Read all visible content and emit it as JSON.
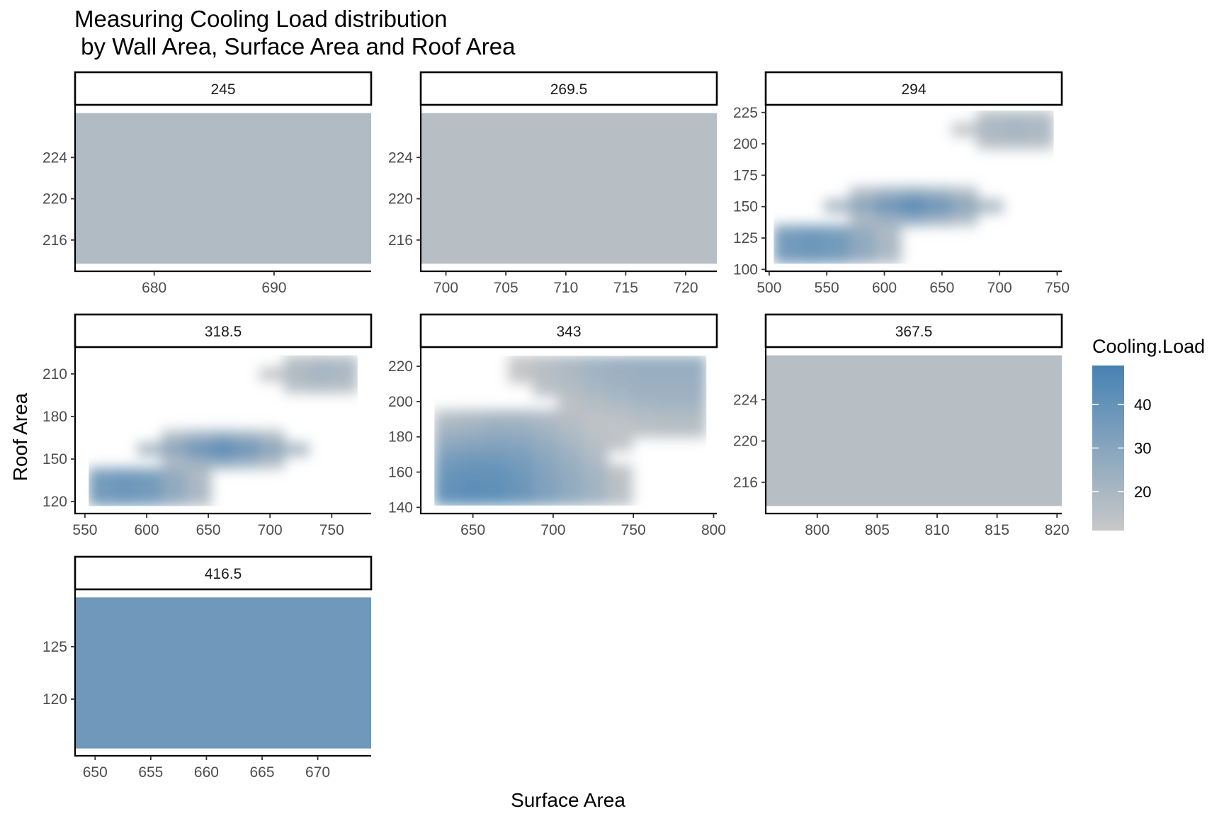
{
  "chart_data": {
    "type": "heatmap",
    "title": "Measuring Cooling Load distribution\n by Wall Area, Surface Area and Roof Area",
    "xlabel": "Surface Area",
    "ylabel": "Roof Area",
    "facet_var": "Wall Area",
    "legend": {
      "title": "Cooling.Load",
      "placement": "right",
      "range": [
        11,
        49
      ],
      "breaks": [
        20,
        30,
        40
      ],
      "low_color": "#c8c8c8",
      "high_color": "#4682b4"
    },
    "panels": [
      {
        "label": "245",
        "xlim": [
          673.4,
          698.1
        ],
        "ylim": [
          212.97,
          229.03
        ],
        "xticks": [
          680,
          690
        ],
        "yticks": [
          216,
          220,
          224
        ],
        "grid_x": [
          673.4,
          698.1
        ],
        "grid_y": [
          213.7,
          228.3
        ],
        "grid": [
          [
            18
          ]
        ]
      },
      {
        "label": "269.5",
        "xlim": [
          697.9,
          722.6
        ],
        "ylim": [
          212.97,
          229.03
        ],
        "xticks": [
          700,
          705,
          710,
          715,
          720
        ],
        "yticks": [
          216,
          220,
          224
        ],
        "grid_x": [
          697.9,
          722.6
        ],
        "grid_y": [
          213.7,
          228.3
        ],
        "grid": [
          [
            16
          ]
        ]
      },
      {
        "label": "294",
        "xlim": [
          497,
          754
        ],
        "ylim": [
          98.5,
          230.5
        ],
        "xticks": [
          500,
          550,
          600,
          650,
          700,
          750
        ],
        "yticks": [
          100,
          125,
          150,
          175,
          200,
          225
        ],
        "grid_x": [
          504,
          747
        ],
        "grid_y": [
          104.5,
          226.5
        ],
        "grid": [
          [
            null,
            null,
            null,
            null,
            null,
            null,
            null,
            null,
            16,
            17,
            16
          ],
          [
            null,
            null,
            null,
            null,
            null,
            null,
            null,
            13,
            20,
            22,
            20
          ],
          [
            null,
            null,
            null,
            null,
            null,
            null,
            null,
            null,
            16,
            17,
            16
          ],
          [
            null,
            null,
            null,
            null,
            null,
            null,
            null,
            null,
            null,
            null,
            null
          ],
          [
            null,
            null,
            null,
            null,
            null,
            null,
            null,
            null,
            null,
            null,
            null
          ],
          [
            null,
            null,
            null,
            null,
            null,
            null,
            null,
            null,
            null,
            null,
            null
          ],
          [
            null,
            null,
            null,
            18,
            24,
            28,
            24,
            18,
            null,
            null,
            null
          ],
          [
            null,
            null,
            20,
            30,
            40,
            46,
            40,
            30,
            20,
            null,
            null
          ],
          [
            null,
            null,
            null,
            18,
            24,
            28,
            24,
            18,
            null,
            null,
            null
          ],
          [
            34,
            36,
            34,
            26,
            18,
            null,
            null,
            null,
            null,
            null,
            null
          ],
          [
            36,
            38,
            36,
            28,
            20,
            null,
            null,
            null,
            null,
            null,
            null
          ],
          [
            34,
            36,
            34,
            26,
            18,
            null,
            null,
            null,
            null,
            null,
            null
          ]
        ]
      },
      {
        "label": "318.5",
        "xlim": [
          542,
          782
        ],
        "ylim": [
          111.6,
          228.4
        ],
        "xticks": [
          550,
          600,
          650,
          700,
          750
        ],
        "yticks": [
          120,
          150,
          180,
          210
        ],
        "grid_x": [
          553,
          771
        ],
        "grid_y": [
          116.9,
          223.1
        ],
        "grid": [
          [
            null,
            null,
            null,
            null,
            null,
            null,
            null,
            null,
            15,
            18,
            17
          ],
          [
            null,
            null,
            null,
            null,
            null,
            null,
            null,
            13,
            19,
            22,
            20
          ],
          [
            null,
            null,
            null,
            null,
            null,
            null,
            null,
            null,
            15,
            17,
            16
          ],
          [
            null,
            null,
            null,
            null,
            null,
            null,
            null,
            null,
            null,
            null,
            null
          ],
          [
            null,
            null,
            null,
            null,
            null,
            null,
            null,
            null,
            null,
            null,
            null
          ],
          [
            null,
            null,
            null,
            null,
            null,
            null,
            null,
            null,
            null,
            null,
            null
          ],
          [
            null,
            null,
            null,
            18,
            24,
            28,
            24,
            18,
            null,
            null,
            null
          ],
          [
            null,
            null,
            20,
            30,
            40,
            46,
            40,
            30,
            20,
            null,
            null
          ],
          [
            null,
            null,
            null,
            18,
            24,
            28,
            24,
            18,
            null,
            null,
            null
          ],
          [
            34,
            36,
            34,
            26,
            18,
            null,
            null,
            null,
            null,
            null,
            null
          ],
          [
            36,
            38,
            36,
            28,
            20,
            null,
            null,
            null,
            null,
            null,
            null
          ],
          [
            34,
            36,
            34,
            26,
            18,
            null,
            null,
            null,
            null,
            null,
            null
          ]
        ]
      },
      {
        "label": "343",
        "xlim": [
          617.5,
          802
        ],
        "ylim": [
          136.5,
          230.5
        ],
        "xticks": [
          650,
          700,
          750,
          800
        ],
        "yticks": [
          140,
          160,
          180,
          200,
          220
        ],
        "grid_x": [
          626,
          795.5
        ],
        "grid_y": [
          141,
          226
        ],
        "grid": [
          [
            null,
            null,
            null,
            12,
            16,
            19,
            22,
            24,
            25,
            25,
            25
          ],
          [
            null,
            null,
            null,
            12,
            16,
            19,
            22,
            24,
            25,
            25,
            25
          ],
          [
            null,
            null,
            null,
            null,
            14,
            17,
            20,
            22,
            24,
            24,
            24
          ],
          [
            null,
            null,
            null,
            null,
            null,
            14,
            17,
            19,
            21,
            22,
            22
          ],
          [
            16,
            18,
            20,
            20,
            18,
            16,
            14,
            15,
            17,
            18,
            18
          ],
          [
            22,
            24,
            26,
            25,
            22,
            18,
            14,
            13,
            14,
            15,
            15
          ],
          [
            28,
            30,
            31,
            30,
            26,
            21,
            16,
            13,
            null,
            null,
            null
          ],
          [
            34,
            36,
            36,
            34,
            29,
            24,
            18,
            null,
            null,
            null,
            null
          ],
          [
            38,
            40,
            40,
            37,
            31,
            26,
            21,
            14,
            null,
            null,
            null
          ],
          [
            40,
            42,
            41,
            38,
            32,
            27,
            22,
            15,
            null,
            null,
            null
          ],
          [
            40,
            42,
            41,
            38,
            32,
            27,
            22,
            15,
            null,
            null,
            null
          ]
        ]
      },
      {
        "label": "367.5",
        "xlim": [
          795.7,
          820.4
        ],
        "ylim": [
          212.97,
          229.03
        ],
        "xticks": [
          800,
          805,
          810,
          815,
          820
        ],
        "yticks": [
          216,
          220,
          224
        ],
        "grid_x": [
          795.7,
          820.4
        ],
        "grid_y": [
          213.7,
          228.3
        ],
        "grid": [
          [
            16
          ]
        ]
      },
      {
        "label": "416.5",
        "xlim": [
          648.2,
          674.8
        ],
        "ylim": [
          114.6,
          130.4
        ],
        "xticks": [
          650,
          655,
          660,
          665,
          670
        ],
        "yticks": [
          120,
          125
        ],
        "grid_x": [
          648.2,
          674.8
        ],
        "grid_y": [
          115.3,
          129.7
        ],
        "grid": [
          [
            37
          ]
        ]
      }
    ]
  }
}
